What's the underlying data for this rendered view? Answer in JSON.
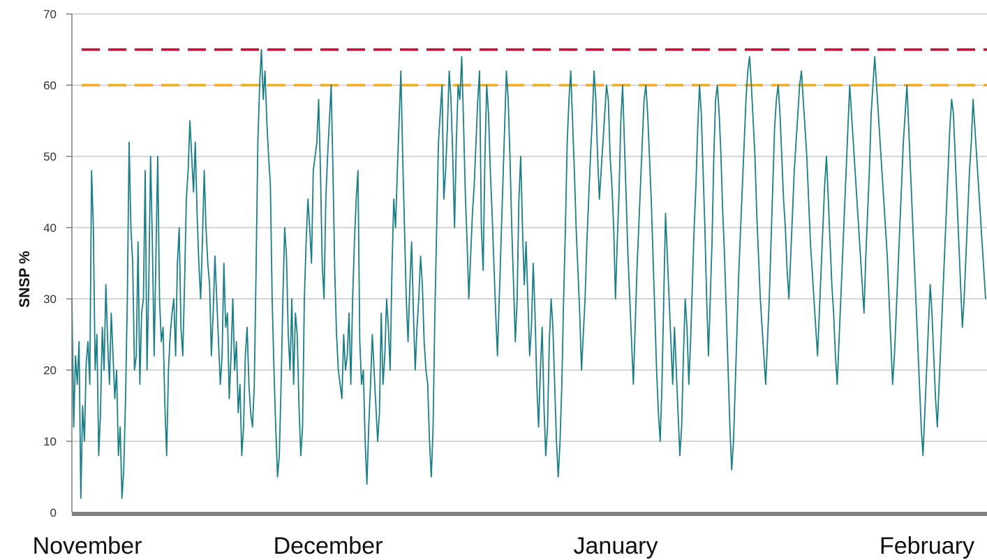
{
  "chart_data": {
    "type": "line",
    "title": "",
    "xlabel": "",
    "ylabel": "SNSP %",
    "ylim": [
      0,
      70
    ],
    "yticks": [
      0,
      10,
      20,
      30,
      40,
      50,
      60,
      70
    ],
    "x_categories": [
      "November",
      "December",
      "January",
      "February"
    ],
    "grid": true,
    "legend": "none",
    "colors": {
      "series": "#1a7f86",
      "limit_65": "#c0102e",
      "limit_60": "#f2aa1c",
      "grid": "#c8c8c8",
      "axis": "#7f7f7f"
    },
    "reference_lines": [
      {
        "value": 65,
        "style": "dashed",
        "color": "#c0102e"
      },
      {
        "value": 60,
        "style": "dashed",
        "color": "#f2aa1c"
      }
    ],
    "series": [
      {
        "x_start": "November",
        "x_end": "February",
        "values": [
          30,
          12,
          22,
          18,
          24,
          2,
          15,
          10,
          21,
          24,
          18,
          48,
          40,
          20,
          25,
          8,
          14,
          26,
          20,
          32,
          24,
          18,
          28,
          22,
          16,
          20,
          8,
          12,
          2,
          6,
          16,
          30,
          52,
          40,
          35,
          20,
          22,
          38,
          18,
          28,
          30,
          48,
          20,
          32,
          50,
          38,
          22,
          36,
          50,
          30,
          24,
          26,
          15,
          8,
          20,
          25,
          28,
          30,
          22,
          35,
          40,
          26,
          22,
          32,
          44,
          48,
          55,
          50,
          45,
          52,
          42,
          35,
          30,
          38,
          48,
          40,
          35,
          32,
          22,
          28,
          36,
          30,
          24,
          18,
          22,
          35,
          26,
          28,
          16,
          22,
          30,
          20,
          24,
          14,
          18,
          8,
          12,
          22,
          26,
          18,
          14,
          12,
          18,
          34,
          52,
          60,
          65,
          58,
          62,
          55,
          50,
          46,
          30,
          20,
          12,
          5,
          8,
          18,
          30,
          40,
          36,
          25,
          20,
          30,
          18,
          28,
          25,
          15,
          8,
          12,
          30,
          38,
          44,
          40,
          35,
          48,
          50,
          52,
          58,
          48,
          35,
          30,
          44,
          50,
          55,
          60,
          48,
          34,
          25,
          20,
          18,
          16,
          25,
          20,
          22,
          28,
          18,
          30,
          38,
          44,
          48,
          24,
          18,
          20,
          10,
          4,
          12,
          18,
          25,
          20,
          15,
          10,
          14,
          28,
          18,
          22,
          30,
          26,
          20,
          34,
          44,
          40,
          48,
          55,
          62,
          50,
          40,
          30,
          24,
          32,
          38,
          28,
          20,
          26,
          30,
          36,
          32,
          24,
          20,
          18,
          10,
          5,
          12,
          28,
          40,
          52,
          56,
          60,
          44,
          48,
          54,
          62,
          58,
          50,
          40,
          52,
          60,
          58,
          64,
          55,
          45,
          38,
          30,
          36,
          42,
          46,
          52,
          58,
          62,
          40,
          34,
          50,
          60,
          56,
          48,
          42,
          35,
          28,
          22,
          30,
          38,
          46,
          54,
          62,
          58,
          50,
          40,
          32,
          24,
          30,
          44,
          50,
          40,
          32,
          38,
          30,
          22,
          26,
          35,
          28,
          18,
          12,
          20,
          26,
          15,
          8,
          12,
          24,
          30,
          26,
          18,
          10,
          5,
          10,
          18,
          30,
          40,
          52,
          58,
          62,
          55,
          48,
          40,
          34,
          28,
          20,
          25,
          30,
          38,
          44,
          50,
          55,
          62,
          58,
          50,
          44,
          48,
          52,
          56,
          60,
          58,
          50,
          46,
          40,
          30,
          38,
          45,
          55,
          60,
          52,
          44,
          36,
          30,
          24,
          18,
          26,
          34,
          40,
          46,
          52,
          58,
          60,
          56,
          50,
          44,
          36,
          28,
          20,
          14,
          10,
          18,
          30,
          42,
          36,
          30,
          24,
          18,
          26,
          20,
          14,
          8,
          12,
          22,
          30,
          26,
          18,
          24,
          32,
          40,
          46,
          54,
          60,
          56,
          48,
          40,
          30,
          22,
          30,
          38,
          50,
          58,
          60,
          56,
          50,
          42,
          36,
          28,
          20,
          12,
          6,
          10,
          18,
          26,
          34,
          40,
          46,
          52,
          58,
          62,
          64,
          60,
          55,
          50,
          42,
          36,
          30,
          26,
          22,
          18,
          24,
          30,
          38,
          46,
          54,
          58,
          60,
          56,
          50,
          44,
          40,
          34,
          30,
          36,
          42,
          48,
          52,
          56,
          60,
          62,
          58,
          54,
          50,
          44,
          38,
          34,
          30,
          26,
          22,
          28,
          34,
          40,
          46,
          50,
          44,
          38,
          32,
          28,
          22,
          18,
          24,
          30,
          36,
          42,
          48,
          54,
          60,
          56,
          52,
          48,
          44,
          40,
          36,
          32,
          28,
          36,
          42,
          48,
          56,
          60,
          64,
          60,
          56,
          52,
          48,
          44,
          40,
          36,
          30,
          24,
          18,
          22,
          28,
          34,
          40,
          46,
          52,
          56,
          60,
          54,
          48,
          42,
          36,
          30,
          24,
          18,
          12,
          8,
          14,
          20,
          26,
          32,
          28,
          22,
          16,
          12,
          18,
          24,
          30,
          36,
          42,
          48,
          54,
          58,
          56,
          50,
          44,
          38,
          32,
          26,
          30,
          36,
          42,
          48,
          52,
          58,
          54,
          50,
          46,
          42,
          38,
          34,
          30
        ]
      }
    ]
  }
}
